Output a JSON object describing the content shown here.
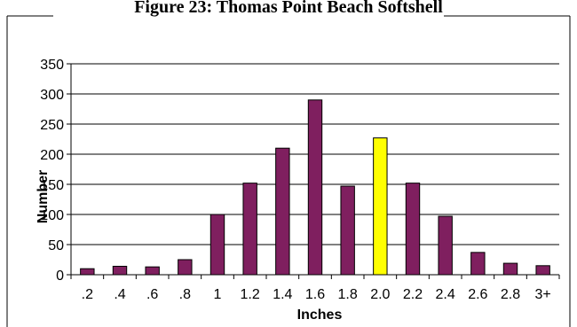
{
  "chart_data": {
    "type": "bar",
    "title": "Figure 23: Thomas Point Beach Softshell",
    "xlabel": "Inches",
    "ylabel": "Number",
    "categories": [
      ".2",
      ".4",
      ".6",
      ".8",
      "1",
      "1.2",
      "1.4",
      "1.6",
      "1.8",
      "2.0",
      "2.2",
      "2.4",
      "2.6",
      "2.8",
      "3+"
    ],
    "values": [
      10,
      14,
      13,
      25,
      100,
      152,
      210,
      290,
      147,
      227,
      152,
      97,
      37,
      19,
      15
    ],
    "ylim": [
      0,
      350
    ],
    "yticks": [
      0,
      50,
      100,
      150,
      200,
      250,
      300,
      350
    ],
    "grid": true,
    "legend": "none",
    "colors": {
      "bar": "#7f1f5f",
      "highlight": "#ffff00",
      "highlight_category": "2.0",
      "bar_outline": "#000000",
      "grid": "#000000"
    }
  }
}
